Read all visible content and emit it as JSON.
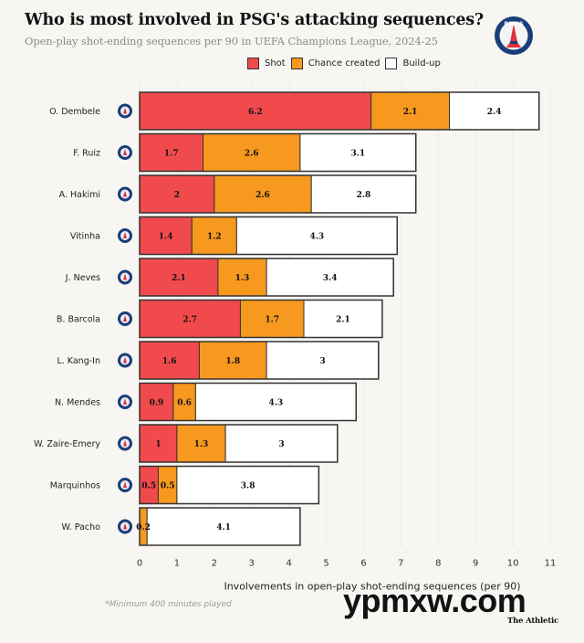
{
  "header": {
    "title": "Who is most involved in PSG's attacking sequences?",
    "subtitle": "Open-play shot-ending sequences per 90 in UEFA Champions League, 2024-25",
    "crest_text": "PARIS",
    "crest_icon": "psg-crest-icon"
  },
  "colors": {
    "shot": "#f14a4d",
    "chance_created": "#f7981f",
    "build_up": "#ffffff",
    "crest_blue": "#1a3e7a",
    "crest_red": "#e0303a",
    "gridline": "#d9d9d4",
    "bar_outline": "#333333"
  },
  "legend": [
    {
      "key": "shot",
      "label": "Shot"
    },
    {
      "key": "chance_created",
      "label": "Chance created"
    },
    {
      "key": "build_up",
      "label": "Build-up"
    }
  ],
  "chart_data": {
    "type": "bar",
    "orientation": "horizontal",
    "stacked": true,
    "title": "Who is most involved in PSG's attacking sequences?",
    "subtitle": "Open-play shot-ending sequences per 90 in UEFA Champions League, 2024-25",
    "xlabel": "Involvements in open-play shot-ending sequences (per 90)",
    "ylabel": "",
    "xlim": [
      0,
      11
    ],
    "xticks": [
      0,
      1,
      2,
      3,
      4,
      5,
      6,
      7,
      8,
      9,
      10,
      11
    ],
    "grid": "vertical dotted",
    "legend_position": "top-right",
    "categories": [
      "O. Dembele",
      "F. Ruiz",
      "A. Hakimi",
      "Vitinha",
      "J. Neves",
      "B. Barcola",
      "L. Kang-In",
      "N. Mendes",
      "W. Zaire-Emery",
      "Marquinhos",
      "W. Pacho"
    ],
    "series": [
      {
        "name": "Shot",
        "key": "shot",
        "values": [
          6.2,
          1.7,
          2,
          1.4,
          2.1,
          2.7,
          1.6,
          0.9,
          1,
          0.5,
          0
        ]
      },
      {
        "name": "Chance created",
        "key": "chance_created",
        "values": [
          2.1,
          2.6,
          2.6,
          1.2,
          1.3,
          1.7,
          1.8,
          0.6,
          1.3,
          0.5,
          0.2
        ]
      },
      {
        "name": "Build-up",
        "key": "build_up",
        "values": [
          2.4,
          3.1,
          2.8,
          4.3,
          3.4,
          2.1,
          3,
          4.3,
          3,
          3.8,
          4.1
        ]
      }
    ]
  },
  "footer": {
    "footnote": "*Minimum 400 minutes played",
    "watermark": "ypmxw.com",
    "brand": "The Athletic"
  }
}
